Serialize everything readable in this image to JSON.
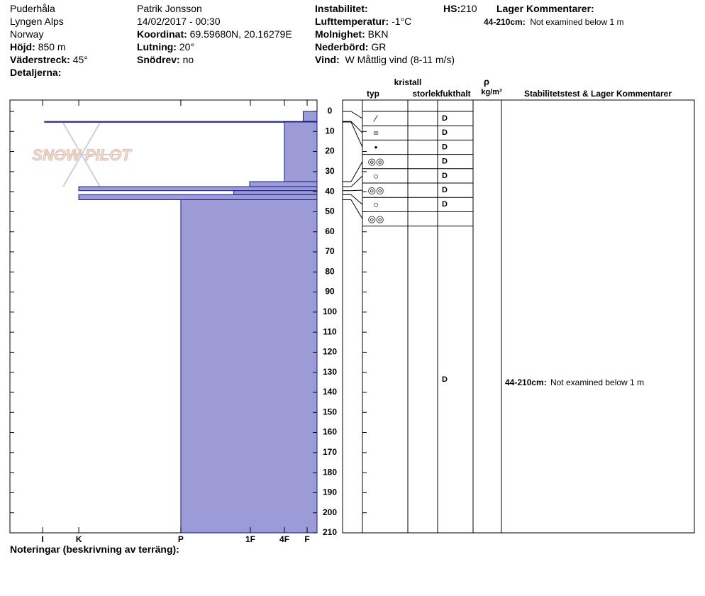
{
  "header": {
    "location": [
      "Puderhåla",
      "Lyngen Alps",
      "Norway"
    ],
    "observer": "Patrik Jonsson",
    "datetime": "14/02/2017 - 00:30",
    "fields": [
      {
        "label": "Höjd:",
        "value": "850 m"
      },
      {
        "label": "Väderstreck:",
        "value": "45°"
      },
      {
        "label": "Detaljerna:"
      },
      {
        "label": "Koordinat:",
        "value": "69.59680N, 20.16279E"
      },
      {
        "label": "Lutning:",
        "value": "20°"
      },
      {
        "label": "Snödrev:",
        "value": "no"
      },
      {
        "label": "Instabilitet:"
      },
      {
        "label": "Lufttemperatur:",
        "value": "-1°C"
      },
      {
        "label": "Molnighet:",
        "value": "BKN"
      },
      {
        "label": "Nederbörd:",
        "value": "GR"
      },
      {
        "label": "Vind:",
        "value": "W Måttlig vind (8-11 m/s)"
      },
      {
        "label": "HS:",
        "value": 210
      },
      {
        "label": "Lager Kommentarer:"
      }
    ]
  },
  "logo": "SNOW PILOT",
  "chart_data": {
    "type": "profile",
    "color": "#9b9bd8",
    "edge_color": "#1a1a80",
    "ylim": [
      0,
      210
    ],
    "yticks": [
      0,
      10,
      20,
      30,
      40,
      50,
      60,
      70,
      80,
      90,
      100,
      110,
      120,
      130,
      140,
      150,
      160,
      170,
      180,
      190,
      200,
      210
    ],
    "xlim": [
      0,
      31
    ],
    "xticks": [
      {
        "value": 27.7,
        "label": "I"
      },
      {
        "value": 24.05,
        "label": "K"
      },
      {
        "value": 13.75,
        "label": "P"
      },
      {
        "value": 6.73,
        "label": "1F"
      },
      {
        "value": 3.29,
        "label": "4F"
      },
      {
        "value": 1.0,
        "label": "F"
      }
    ],
    "columns": {
      "crystal": "kristall",
      "type": "typ",
      "size": "storlek",
      "moisture": "fukthalt",
      "density": "ρ",
      "density_unit": "kg/m³",
      "comments": "Stabilitetstest & Lager Kommentarer"
    },
    "layers": [
      {
        "top": 0,
        "bottom": 5,
        "hardness": 1.4,
        "grain": "⁄",
        "moisture": "D"
      },
      {
        "top": 5,
        "bottom": 5.3,
        "hardness": 27.5,
        "grain": "=",
        "moisture": "D"
      },
      {
        "top": 5.3,
        "bottom": 35,
        "hardness": 3.3,
        "grain": "•",
        "moisture": "D"
      },
      {
        "top": 35,
        "bottom": 37.5,
        "hardness": 6.8,
        "grain": "◎◎",
        "moisture": "D"
      },
      {
        "top": 37.5,
        "bottom": 39.5,
        "hardness": 24.05,
        "grain": "○",
        "moisture": "D"
      },
      {
        "top": 39.5,
        "bottom": 41.5,
        "hardness": 8.4,
        "grain": "◎◎",
        "moisture": "D"
      },
      {
        "top": 41.5,
        "bottom": 44,
        "hardness": 24.05,
        "grain": "○",
        "moisture": "D"
      },
      {
        "top": 44,
        "bottom": 210,
        "hardness": 13.75,
        "grain": "◎◎",
        "moisture": "D",
        "comment": {
          "range": "44-210cm:",
          "text": "Not examined below 1 m"
        }
      }
    ]
  },
  "footer": {
    "notes": "Noteringar (beskrivning av terräng):"
  }
}
